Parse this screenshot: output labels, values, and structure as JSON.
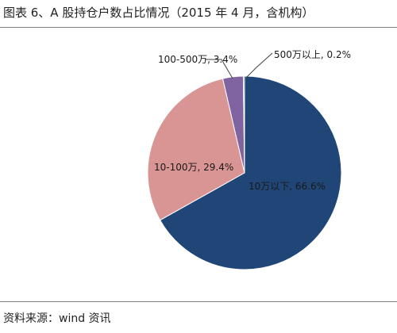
{
  "header": {
    "title": "图表 6、A 股持仓户数占比情况（2015 年 4 月，含机构）"
  },
  "footer": {
    "source": "资料来源：wind 资讯"
  },
  "chart_data": {
    "type": "pie",
    "title": "图表 6、A 股持仓户数占比情况（2015 年 4 月，含机构）",
    "slices": [
      {
        "name": "10万以下",
        "value": 66.6,
        "label": "10万以下, 66.6%",
        "color": "#1f4677"
      },
      {
        "name": "10-100万",
        "value": 29.4,
        "label": "10-100万, 29.4%",
        "color": "#d99594"
      },
      {
        "name": "100-500万",
        "value": 3.4,
        "label": "100-500万, 3.4%",
        "color": "#8064a2"
      },
      {
        "name": "500万以上",
        "value": 0.2,
        "label": "500万以上, 0.2%",
        "color": "#4f81bd"
      }
    ],
    "start": "12 o'clock",
    "direction": "clockwise",
    "legend": "none"
  }
}
